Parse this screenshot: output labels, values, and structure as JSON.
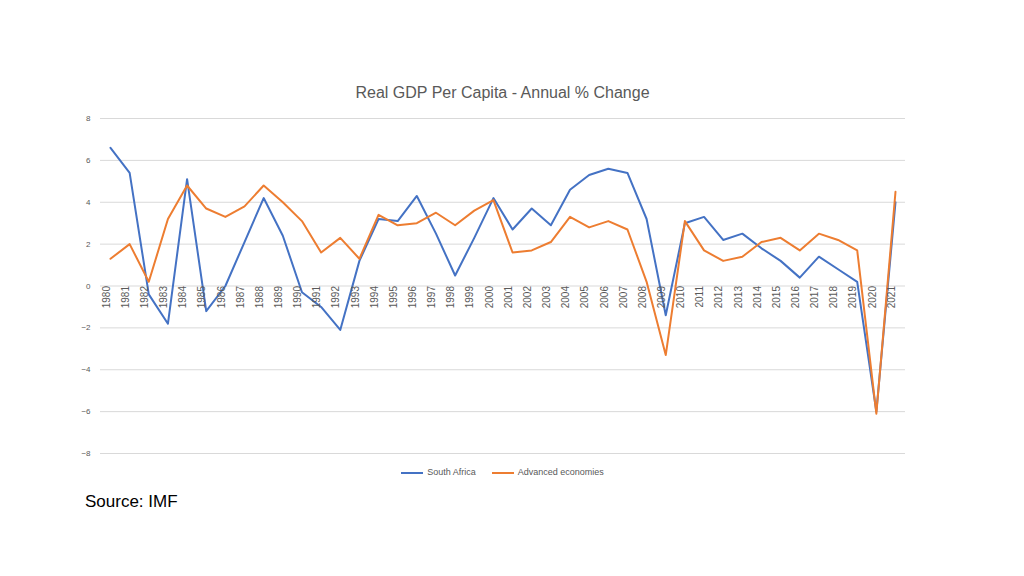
{
  "chart_data": {
    "type": "line",
    "title": "Real GDP Per Capita - Annual % Change",
    "x": [
      1980,
      1981,
      1982,
      1983,
      1984,
      1985,
      1986,
      1987,
      1988,
      1989,
      1990,
      1991,
      1992,
      1993,
      1994,
      1995,
      1996,
      1997,
      1998,
      1999,
      2000,
      2001,
      2002,
      2003,
      2004,
      2005,
      2006,
      2007,
      2008,
      2009,
      2010,
      2011,
      2012,
      2013,
      2014,
      2015,
      2016,
      2017,
      2018,
      2019,
      2020,
      2021
    ],
    "series": [
      {
        "name": "South Africa",
        "color": "#4472c4",
        "values": [
          6.6,
          5.4,
          -0.4,
          -1.8,
          5.1,
          -1.2,
          0.0,
          2.1,
          4.2,
          2.4,
          -0.3,
          -1.0,
          -2.1,
          1.2,
          3.2,
          3.1,
          4.3,
          2.5,
          0.5,
          2.3,
          4.2,
          2.7,
          3.7,
          2.9,
          4.6,
          5.3,
          5.6,
          5.4,
          3.2,
          -1.4,
          3.0,
          3.3,
          2.2,
          2.5,
          1.8,
          1.2,
          0.4,
          1.4,
          0.8,
          0.2,
          -6.0,
          4.0
        ]
      },
      {
        "name": "Advanced economies",
        "color": "#ed7d31",
        "values": [
          1.3,
          2.0,
          0.2,
          3.2,
          4.8,
          3.7,
          3.3,
          3.8,
          4.8,
          4.0,
          3.1,
          1.6,
          2.3,
          1.3,
          3.4,
          2.9,
          3.0,
          3.5,
          2.9,
          3.6,
          4.1,
          1.6,
          1.7,
          2.1,
          3.3,
          2.8,
          3.1,
          2.7,
          0.2,
          -3.3,
          3.1,
          1.7,
          1.2,
          1.4,
          2.1,
          2.3,
          1.7,
          2.5,
          2.2,
          1.7,
          -6.1,
          4.5
        ]
      }
    ],
    "xlim": [
      1980,
      2021
    ],
    "xticks": [
      1980,
      1981,
      1982,
      1983,
      1984,
      1985,
      1986,
      1987,
      1988,
      1989,
      1990,
      1991,
      1992,
      1993,
      1994,
      1995,
      1996,
      1997,
      1998,
      1999,
      2000,
      2001,
      2002,
      2003,
      2004,
      2005,
      2006,
      2007,
      2008,
      2009,
      2010,
      2011,
      2012,
      2013,
      2014,
      2015,
      2016,
      2017,
      2018,
      2019,
      2020,
      2021
    ],
    "ylim": [
      -8,
      8
    ],
    "yticks": [
      -8,
      -6,
      -4,
      -2,
      0,
      2,
      4,
      6,
      8
    ],
    "grid": true,
    "legend": "bottom",
    "annotations": [
      "Source: IMF"
    ]
  }
}
